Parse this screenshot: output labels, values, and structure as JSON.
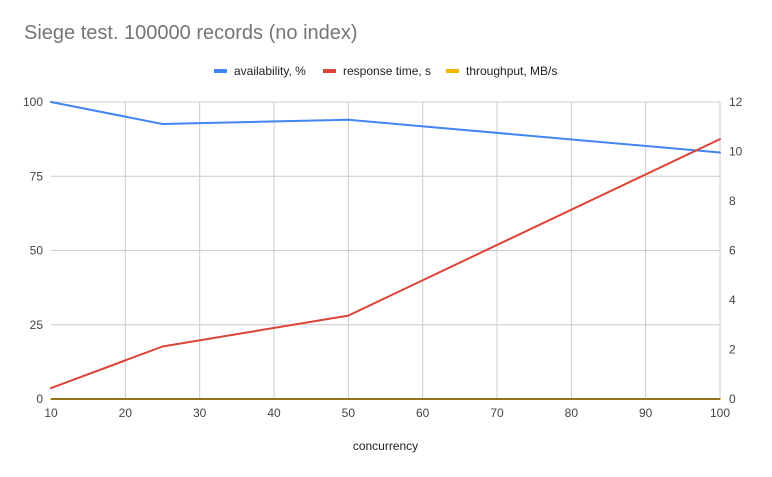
{
  "chart_data": {
    "type": "line",
    "title": "Siege test. 100000 records (no index)",
    "xlabel": "concurrency",
    "ylabel_left": "",
    "ylabel_right": "",
    "xlim": [
      10,
      100
    ],
    "ylim_left": [
      0,
      100
    ],
    "ylim_right": [
      0,
      12
    ],
    "x_ticks": [
      10,
      20,
      30,
      40,
      50,
      60,
      70,
      80,
      90,
      100
    ],
    "y_left_ticks": [
      0,
      25,
      50,
      75,
      100
    ],
    "y_right_ticks": [
      0,
      2,
      4,
      6,
      8,
      10,
      12
    ],
    "grid": true,
    "legend_position": "top",
    "series": [
      {
        "name": "availability, %",
        "axis": "left",
        "color": "#4285f4",
        "x": [
          10,
          25,
          50,
          100
        ],
        "y": [
          100,
          92.6,
          94,
          83
        ]
      },
      {
        "name": "response time, s",
        "axis": "right",
        "color": "#db4437",
        "x": [
          10,
          25,
          50,
          100
        ],
        "y": [
          0.44,
          2.12,
          3.37,
          10.5
        ]
      },
      {
        "name": "throughput, MB/s",
        "axis": "right",
        "color": "#f4b400",
        "x": [
          10,
          25,
          50,
          100
        ],
        "y": [
          0,
          0,
          0,
          0
        ]
      }
    ]
  }
}
